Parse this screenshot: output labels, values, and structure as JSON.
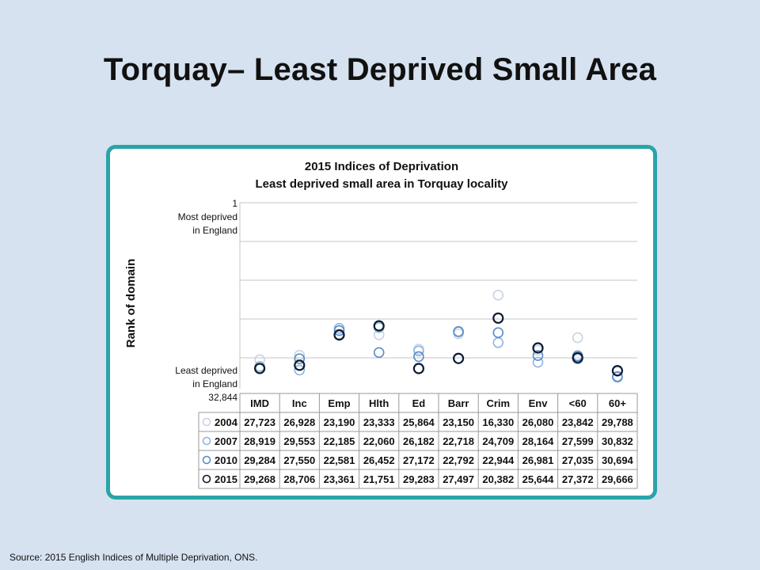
{
  "slide": {
    "title": "Torquay– Least Deprived Small Area",
    "source": "Source: 2015 English Indices of Multiple Deprivation, ONS."
  },
  "chart_data": {
    "type": "scatter",
    "title": "2015 Indices of Deprivation",
    "subtitle": "Least deprived small area in Torquay locality",
    "ylabel": "Rank of domain",
    "y_top_label": [
      "1",
      "Most deprived",
      "in England"
    ],
    "y_bottom_label": [
      "Least deprived",
      "in England",
      "32,844"
    ],
    "ylim": [
      1,
      32844
    ],
    "y_inverted": true,
    "grid": true,
    "categories": [
      "IMD",
      "Inc",
      "Emp",
      "Hlth",
      "Ed",
      "Barr",
      "Crim",
      "Env",
      "<60",
      "60+"
    ],
    "series": [
      {
        "name": "2004",
        "color": "#c9d3e3",
        "values": [
          "27,723",
          "26,928",
          "23,190",
          "23,333",
          "25,864",
          "23,150",
          "16,330",
          "26,080",
          "23,842",
          "29,788"
        ]
      },
      {
        "name": "2007",
        "color": "#8fb6dd",
        "values": [
          "28,919",
          "29,553",
          "22,185",
          "22,060",
          "26,182",
          "22,718",
          "24,709",
          "28,164",
          "27,599",
          "30,832"
        ]
      },
      {
        "name": "2010",
        "color": "#5a8cc6",
        "values": [
          "29,284",
          "27,550",
          "22,581",
          "26,452",
          "27,172",
          "22,792",
          "22,944",
          "26,981",
          "27,035",
          "30,694"
        ]
      },
      {
        "name": "2015",
        "color": "#0c1b33",
        "values": [
          "29,268",
          "28,706",
          "23,361",
          "21,751",
          "29,283",
          "27,497",
          "20,382",
          "25,644",
          "27,372",
          "29,666"
        ]
      }
    ]
  }
}
